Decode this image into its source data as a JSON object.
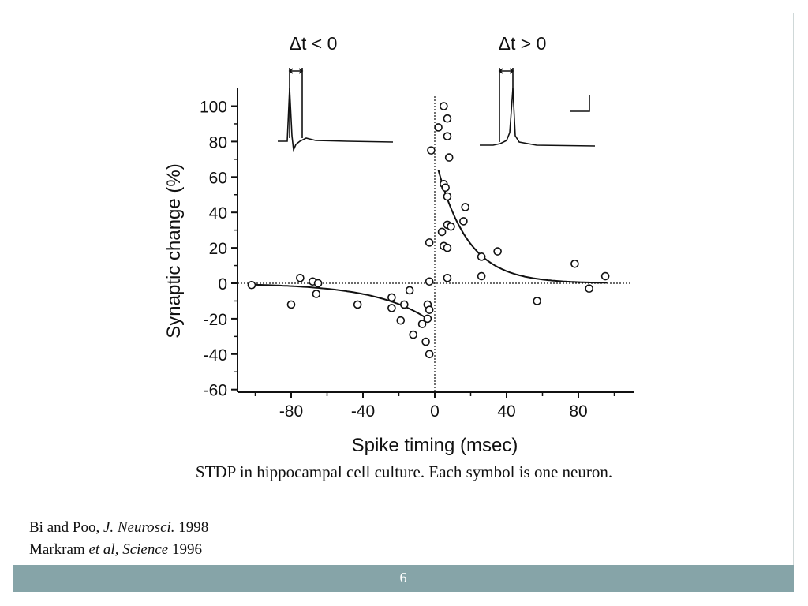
{
  "chart_data": {
    "type": "scatter",
    "title": "",
    "xlabel": "Spike timing (msec)",
    "ylabel": "Synaptic change (%)",
    "xlim": [
      -108,
      112
    ],
    "ylim": [
      -60,
      110
    ],
    "x_ticks": [
      -80,
      -40,
      0,
      40,
      80
    ],
    "x_tick_labels": [
      "-80",
      "-40",
      "0",
      "40",
      "80"
    ],
    "y_ticks": [
      -60,
      -40,
      -20,
      0,
      20,
      40,
      60,
      80,
      100
    ],
    "y_tick_labels": [
      "-60",
      "-40",
      "-20",
      "0",
      "20",
      "40",
      "60",
      "80",
      "100"
    ],
    "grid": false,
    "reference_lines": {
      "y": 0,
      "x": 0,
      "style": "dotted"
    },
    "inset_labels": {
      "negative": "Δt < 0",
      "positive": "Δt > 0"
    },
    "points": [
      {
        "x": -102,
        "y": -1
      },
      {
        "x": -80,
        "y": -12
      },
      {
        "x": -75,
        "y": 3
      },
      {
        "x": -68,
        "y": 1
      },
      {
        "x": -66,
        "y": -6
      },
      {
        "x": -65,
        "y": 0
      },
      {
        "x": -43,
        "y": -12
      },
      {
        "x": -24,
        "y": -8
      },
      {
        "x": -24,
        "y": -14
      },
      {
        "x": -19,
        "y": -21
      },
      {
        "x": -17,
        "y": -12
      },
      {
        "x": -14,
        "y": -4
      },
      {
        "x": -12,
        "y": -29
      },
      {
        "x": -7,
        "y": -23
      },
      {
        "x": -5,
        "y": -33
      },
      {
        "x": -4,
        "y": -12
      },
      {
        "x": -4,
        "y": -20
      },
      {
        "x": -3,
        "y": -40
      },
      {
        "x": -3,
        "y": -15
      },
      {
        "x": -3,
        "y": 1
      },
      {
        "x": -3,
        "y": 23
      },
      {
        "x": -2,
        "y": 75
      },
      {
        "x": 2,
        "y": 88
      },
      {
        "x": 4,
        "y": 29
      },
      {
        "x": 5,
        "y": 100
      },
      {
        "x": 5,
        "y": 56
      },
      {
        "x": 5,
        "y": 21
      },
      {
        "x": 6,
        "y": 54
      },
      {
        "x": 7,
        "y": 93
      },
      {
        "x": 7,
        "y": 83
      },
      {
        "x": 7,
        "y": 49
      },
      {
        "x": 7,
        "y": 33
      },
      {
        "x": 7,
        "y": 20
      },
      {
        "x": 7,
        "y": 3
      },
      {
        "x": 8,
        "y": 71
      },
      {
        "x": 9,
        "y": 32
      },
      {
        "x": 16,
        "y": 35
      },
      {
        "x": 17,
        "y": 43
      },
      {
        "x": 26,
        "y": 15
      },
      {
        "x": 26,
        "y": 4
      },
      {
        "x": 35,
        "y": 18
      },
      {
        "x": 57,
        "y": -10
      },
      {
        "x": 78,
        "y": 11
      },
      {
        "x": 86,
        "y": -3
      },
      {
        "x": 95,
        "y": 4
      }
    ],
    "fit_curves": [
      {
        "side": "negative",
        "A": -23,
        "tau": 30,
        "x_range": [
          -102,
          -3
        ]
      },
      {
        "side": "positive",
        "A": 72,
        "tau": 17,
        "x_range": [
          2,
          96
        ]
      }
    ],
    "inset_traces": [
      {
        "side": "negative",
        "interval_marker": true
      },
      {
        "side": "positive",
        "interval_marker": true,
        "scale_bar": true
      }
    ]
  },
  "caption": "STDP in hippocampal cell culture. Each symbol is one neuron.",
  "references": {
    "ref1": {
      "authors": "Bi and Poo, ",
      "journal": "J. Neurosci.",
      "year": " 1998"
    },
    "ref2": {
      "authors": "Markram ",
      "etal": "et al, Science",
      "year": " 1996"
    }
  },
  "footer": {
    "page_number": "6"
  },
  "colors": {
    "footer_bar": "#86a4a8",
    "page_text": "#ffffff",
    "plot_ink": "#111111"
  }
}
